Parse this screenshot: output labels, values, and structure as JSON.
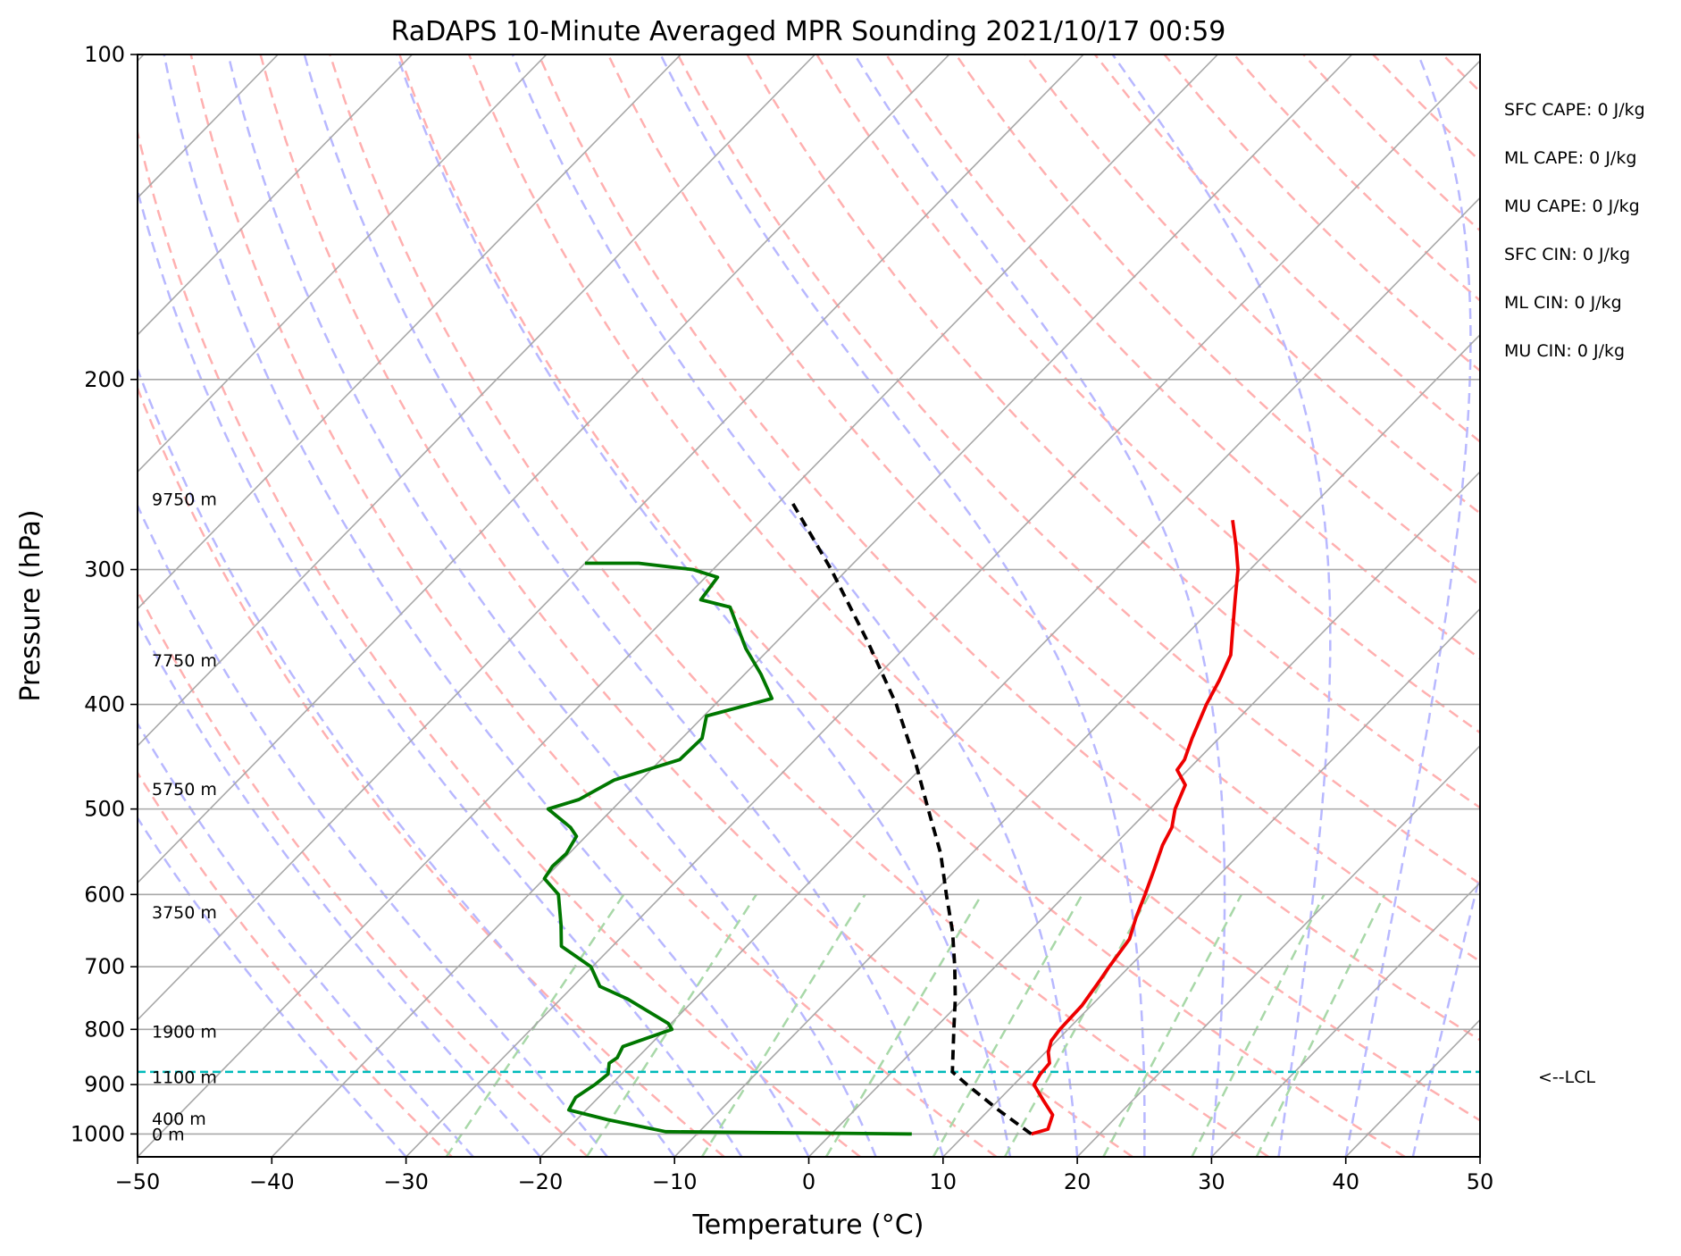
{
  "chart_data": {
    "type": "line",
    "title": "RaDAPS 10-Minute Averaged MPR Sounding 2021/10/17 00:59",
    "xlabel": "Temperature (°C)",
    "ylabel": "Pressure (hPa)",
    "xlim": [
      -50,
      50
    ],
    "ylim": [
      1050,
      100
    ],
    "y_scale": "log",
    "skew": "skew-T",
    "grid": true,
    "x_ticks": [
      -50,
      -40,
      -30,
      -20,
      -10,
      0,
      10,
      20,
      30,
      40,
      50
    ],
    "x_tick_labels": [
      "−50",
      "−40",
      "−30",
      "−20",
      "−10",
      "0",
      "10",
      "20",
      "30",
      "40",
      "50"
    ],
    "y_ticks": [
      1000,
      900,
      800,
      700,
      600,
      500,
      400,
      300,
      200,
      100
    ],
    "y_tick_labels": [
      "1000",
      "900",
      "800",
      "700",
      "600",
      "500",
      "400",
      "300",
      "200",
      "100"
    ],
    "series": [
      {
        "color": "#ee0000",
        "points": [
          [
            1000,
            14.9
          ],
          [
            990,
            15.8
          ],
          [
            960,
            15.1
          ],
          [
            930,
            13.3
          ],
          [
            900,
            11.5
          ],
          [
            880,
            11.2
          ],
          [
            860,
            11.1
          ],
          [
            840,
            10.2
          ],
          [
            820,
            9.6
          ],
          [
            800,
            9.4
          ],
          [
            760,
            9.3
          ],
          [
            720,
            8.8
          ],
          [
            700,
            8.5
          ],
          [
            660,
            8.0
          ],
          [
            630,
            6.9
          ],
          [
            600,
            5.9
          ],
          [
            570,
            4.8
          ],
          [
            540,
            3.6
          ],
          [
            520,
            3.0
          ],
          [
            500,
            1.9
          ],
          [
            475,
            0.9
          ],
          [
            460,
            -0.8
          ],
          [
            450,
            -1.0
          ],
          [
            430,
            -2.0
          ],
          [
            400,
            -3.4
          ],
          [
            380,
            -4.2
          ],
          [
            360,
            -5.2
          ],
          [
            340,
            -7.0
          ],
          [
            320,
            -8.9
          ],
          [
            300,
            -10.9
          ],
          [
            285,
            -12.8
          ],
          [
            270,
            -14.9
          ]
        ]
      },
      {
        "color": "#007700",
        "points": [
          [
            1000,
            6.0
          ],
          [
            995,
            -12.5
          ],
          [
            970,
            -17.7
          ],
          [
            950,
            -21.3
          ],
          [
            925,
            -21.7
          ],
          [
            900,
            -21.2
          ],
          [
            880,
            -21.0
          ],
          [
            860,
            -21.7
          ],
          [
            850,
            -21.5
          ],
          [
            830,
            -21.9
          ],
          [
            800,
            -19.5
          ],
          [
            790,
            -20.2
          ],
          [
            750,
            -25.0
          ],
          [
            730,
            -28.0
          ],
          [
            700,
            -30.1
          ],
          [
            670,
            -33.8
          ],
          [
            640,
            -35.4
          ],
          [
            600,
            -37.8
          ],
          [
            580,
            -40.0
          ],
          [
            565,
            -40.3
          ],
          [
            550,
            -40.2
          ],
          [
            530,
            -40.7
          ],
          [
            520,
            -41.8
          ],
          [
            500,
            -44.8
          ],
          [
            490,
            -43.2
          ],
          [
            470,
            -42.0
          ],
          [
            450,
            -38.6
          ],
          [
            430,
            -38.5
          ],
          [
            410,
            -39.8
          ],
          [
            395,
            -36.2
          ],
          [
            375,
            -38.8
          ],
          [
            355,
            -41.8
          ],
          [
            325,
            -46.0
          ],
          [
            320,
            -48.7
          ],
          [
            305,
            -49.1
          ],
          [
            300,
            -51.5
          ],
          [
            296,
            -56.0
          ],
          [
            296,
            -60.0
          ]
        ]
      },
      {
        "color": "#000000",
        "dashed": true,
        "points": [
          [
            1000,
            14.9
          ],
          [
            950,
            10.7
          ],
          [
            900,
            6.5
          ],
          [
            876,
            4.5
          ],
          [
            850,
            3.5
          ],
          [
            800,
            1.5
          ],
          [
            750,
            -0.6
          ],
          [
            700,
            -3.0
          ],
          [
            650,
            -5.7
          ],
          [
            600,
            -8.9
          ],
          [
            550,
            -12.3
          ],
          [
            500,
            -16.5
          ],
          [
            450,
            -21.1
          ],
          [
            400,
            -26.5
          ],
          [
            350,
            -33.2
          ],
          [
            300,
            -41.2
          ],
          [
            260,
            -49.0
          ]
        ]
      }
    ],
    "height_labels": [
      {
        "pressure": 258,
        "text": "9750 m"
      },
      {
        "pressure": 364,
        "text": "7750 m"
      },
      {
        "pressure": 479,
        "text": "5750 m"
      },
      {
        "pressure": 623,
        "text": "3750 m"
      },
      {
        "pressure": 803,
        "text": "1900 m"
      },
      {
        "pressure": 885,
        "text": "1100 m"
      },
      {
        "pressure": 967,
        "text": "400 m"
      },
      {
        "pressure": 1000,
        "text": "0 m"
      }
    ],
    "lcl": {
      "pressure": 876,
      "label": "<--LCL",
      "color": "#00bbbb"
    },
    "indices": [
      "SFC CAPE: 0 J/kg",
      "ML CAPE: 0 J/kg",
      "MU CAPE: 0 J/kg",
      "SFC CIN: 0 J/kg",
      "ML CIN: 0 J/kg",
      "MU CIN: 0 J/kg"
    ],
    "colors": {
      "isotherm": "#a8a8a8",
      "dry_adiabat": "#ffb0b0",
      "moist_adiabat": "#b8b8ff",
      "mixing_ratio": "#a8d8a8",
      "isobar": "#a8a8a8"
    }
  }
}
